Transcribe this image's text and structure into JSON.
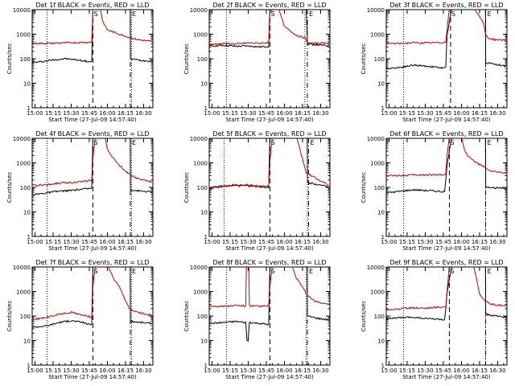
{
  "figure": {
    "colors": {
      "events": "#000000",
      "lld": "#cc0000",
      "axis": "#000000",
      "background": "#ffffff"
    },
    "time_ticks": [
      "15:00",
      "15:15",
      "15:30",
      "15:45",
      "16:00",
      "16:15",
      "16:30"
    ],
    "ylabel": "Counts/sec",
    "xlabel": "Start Time (27-Jul-09 14:57:40)",
    "y_tick_labels": [
      "1",
      "10",
      "100",
      "1000",
      "10000"
    ],
    "marker_labels": {
      "start": "S",
      "end": "E"
    }
  },
  "chart_data": [
    {
      "type": "line",
      "title": "Det 1f BLACK = Events, RED = LLD",
      "xlabel": "Start Time (27-Jul-09 14:57:40)",
      "ylabel": "Counts/sec",
      "x_unit": "minutes since 15:00",
      "xlim": [
        -2.3,
        97.7
      ],
      "ylim": [
        1,
        10000
      ],
      "yscale": "log",
      "markers": {
        "S": 48,
        "E": 79,
        "dotted": [
          10,
          80
        ]
      },
      "series": [
        {
          "name": "Events",
          "color": "#000000",
          "x": [
            -2,
            5,
            15,
            25,
            35,
            45,
            47,
            48,
            52,
            60,
            70,
            78.9,
            79.1,
            88,
            97
          ],
          "y": [
            70,
            75,
            90,
            100,
            90,
            75,
            75,
            12000,
            12000,
            12000,
            12000,
            12000,
            100,
            85,
            80
          ]
        },
        {
          "name": "LLD",
          "color": "#cc0000",
          "x": [
            -2,
            15,
            30,
            45,
            47,
            48,
            52,
            54,
            56,
            60,
            70,
            78,
            85,
            97
          ],
          "y": [
            420,
            430,
            450,
            470,
            480,
            10000,
            12000,
            12000,
            3500,
            1500,
            1000,
            750,
            600,
            500
          ]
        }
      ]
    },
    {
      "type": "line",
      "title": "Det 2f BLACK = Events, RED = LLD",
      "xlabel": "Start Time (27-Jul-09 14:57:40)",
      "ylabel": "Counts/sec",
      "x_unit": "minutes since 15:00",
      "xlim": [
        -2.3,
        97.7
      ],
      "ylim": [
        1,
        10000
      ],
      "yscale": "log",
      "markers": {
        "S": 48,
        "E": 79,
        "dotted": [
          12,
          77
        ]
      },
      "series": [
        {
          "name": "Events",
          "color": "#000000",
          "x": [
            -2,
            10,
            20,
            30,
            40,
            47,
            48,
            52,
            60,
            70,
            77,
            78,
            79.1,
            85,
            97
          ],
          "y": [
            330,
            350,
            320,
            330,
            300,
            320,
            12000,
            12000,
            12000,
            12000,
            12000,
            12000,
            400,
            380,
            330
          ]
        },
        {
          "name": "LLD",
          "color": "#cc0000",
          "x": [
            -2,
            10,
            20,
            30,
            40,
            47,
            48,
            52,
            55,
            60,
            70,
            77,
            78,
            79,
            85,
            97
          ],
          "y": [
            380,
            420,
            400,
            440,
            430,
            460,
            8000,
            12000,
            12000,
            2000,
            900,
            700,
            600,
            450,
            420,
            450
          ]
        }
      ]
    },
    {
      "type": "line",
      "title": "Det 3f BLACK = Events, RED = LLD",
      "xlabel": "Start Time (27-Jul-09 14:57:40)",
      "ylabel": "Counts/sec",
      "x_unit": "minutes since 15:00",
      "xlim": [
        -2.3,
        97.7
      ],
      "ylim": [
        1,
        10000
      ],
      "yscale": "log",
      "markers": {
        "S": 51,
        "E": 80,
        "dotted": [
          12,
          80
        ]
      },
      "series": [
        {
          "name": "Events",
          "color": "#000000",
          "x": [
            -2,
            10,
            20,
            30,
            40,
            46,
            47,
            47.5,
            48,
            52,
            60,
            70,
            78,
            79.9,
            80.1,
            88,
            97
          ],
          "y": [
            40,
            45,
            55,
            50,
            45,
            40,
            45,
            200,
            900,
            12000,
            12000,
            12000,
            12000,
            12000,
            70,
            60,
            50
          ]
        },
        {
          "name": "LLD",
          "color": "#cc0000",
          "x": [
            -2,
            10,
            20,
            30,
            40,
            47,
            48,
            50,
            53,
            60,
            70,
            78,
            80,
            82,
            88,
            97
          ],
          "y": [
            420,
            420,
            450,
            440,
            450,
            470,
            1500,
            12000,
            12000,
            12000,
            12000,
            3000,
            1000,
            700,
            600,
            580
          ]
        }
      ]
    },
    {
      "type": "line",
      "title": "Det 4f BLACK = Events, RED = LLD",
      "xlabel": "Start Time (27-Jul-09 14:57:40)",
      "ylabel": "Counts/sec",
      "x_unit": "minutes since 15:00",
      "xlim": [
        -2.3,
        97.7
      ],
      "ylim": [
        1,
        10000
      ],
      "yscale": "log",
      "markers": {
        "S": 48,
        "E": 79,
        "dotted": [
          10,
          80
        ]
      },
      "series": [
        {
          "name": "Events",
          "color": "#000000",
          "x": [
            -2,
            10,
            20,
            30,
            40,
            45,
            47,
            48,
            52,
            60,
            70,
            78.9,
            79.1,
            88,
            97
          ],
          "y": [
            50,
            60,
            70,
            75,
            85,
            90,
            95,
            12000,
            12000,
            12000,
            12000,
            12000,
            80,
            70,
            65
          ]
        },
        {
          "name": "LLD",
          "color": "#cc0000",
          "x": [
            -2,
            10,
            20,
            30,
            40,
            47,
            48,
            50,
            52,
            54,
            56,
            58,
            60,
            65,
            70,
            78,
            85,
            97
          ],
          "y": [
            120,
            130,
            150,
            160,
            170,
            200,
            1500,
            12000,
            12000,
            12000,
            12000,
            12000,
            3500,
            1500,
            800,
            350,
            230,
            160
          ]
        }
      ]
    },
    {
      "type": "line",
      "title": "Det 5f BLACK = Events, RED = LLD",
      "xlabel": "Start Time (27-Jul-09 14:57:40)",
      "ylabel": "Counts/sec",
      "x_unit": "minutes since 15:00",
      "xlim": [
        -2.3,
        97.7
      ],
      "ylim": [
        1,
        10000
      ],
      "yscale": "log",
      "markers": {
        "S": 48,
        "E": 80,
        "dotted": [
          10,
          79
        ]
      },
      "series": [
        {
          "name": "Events",
          "color": "#000000",
          "x": [
            -2,
            10,
            20,
            30,
            40,
            47,
            48,
            52,
            60,
            70,
            78.9,
            79.1,
            88,
            97
          ],
          "y": [
            90,
            110,
            120,
            115,
            105,
            100,
            12000,
            12000,
            12000,
            12000,
            12000,
            160,
            130,
            100
          ]
        },
        {
          "name": "LLD",
          "color": "#cc0000",
          "x": [
            -2,
            10,
            20,
            30,
            40,
            47,
            48,
            50,
            54,
            60,
            70,
            78,
            85,
            97
          ],
          "y": [
            100,
            120,
            130,
            125,
            115,
            110,
            1000,
            12000,
            12000,
            12000,
            12000,
            400,
            250,
            120
          ]
        }
      ]
    },
    {
      "type": "line",
      "title": "Det 6f BLACK = Events, RED = LLD",
      "xlabel": "Start Time (27-Jul-09 14:57:40)",
      "ylabel": "Counts/sec",
      "x_unit": "minutes since 15:00",
      "xlim": [
        -2.3,
        97.7
      ],
      "ylim": [
        1,
        10000
      ],
      "yscale": "log",
      "markers": {
        "S": 50,
        "E": 80,
        "dotted": [
          12,
          80
        ]
      },
      "series": [
        {
          "name": "Events",
          "color": "#000000",
          "x": [
            -2,
            10,
            20,
            30,
            40,
            46,
            47,
            48,
            52,
            60,
            70,
            78,
            79.9,
            80.1,
            88,
            97
          ],
          "y": [
            60,
            70,
            80,
            75,
            70,
            65,
            200,
            800,
            12000,
            12000,
            12000,
            12000,
            12000,
            110,
            95,
            90
          ]
        },
        {
          "name": "LLD",
          "color": "#cc0000",
          "x": [
            -2,
            10,
            20,
            30,
            40,
            47,
            48,
            50,
            53,
            58,
            60,
            62,
            65,
            70,
            78,
            85,
            97
          ],
          "y": [
            300,
            310,
            320,
            320,
            330,
            330,
            2000,
            12000,
            12000,
            12000,
            12000,
            4000,
            2000,
            1200,
            700,
            450,
            380
          ]
        }
      ]
    },
    {
      "type": "line",
      "title": "Det 7f BLACK = Events, RED = LLD",
      "xlabel": "Start Time (27-Jul-09 14:57:40)",
      "ylabel": "Counts/sec",
      "x_unit": "minutes since 15:00",
      "xlim": [
        -2.3,
        97.7
      ],
      "ylim": [
        1,
        10000
      ],
      "yscale": "log",
      "markers": {
        "S": 48,
        "E": 79,
        "dotted": [
          10,
          80
        ]
      },
      "series": [
        {
          "name": "Events",
          "color": "#000000",
          "x": [
            -2,
            10,
            20,
            30,
            40,
            45,
            47,
            48,
            52,
            60,
            70,
            78.9,
            79.1,
            88,
            97
          ],
          "y": [
            35,
            40,
            55,
            65,
            55,
            45,
            45,
            12000,
            12000,
            12000,
            12000,
            12000,
            60,
            55,
            50
          ]
        },
        {
          "name": "LLD",
          "color": "#cc0000",
          "x": [
            -2,
            10,
            20,
            30,
            40,
            47,
            48,
            50,
            54,
            60,
            65,
            70,
            78,
            85,
            97
          ],
          "y": [
            70,
            90,
            120,
            140,
            110,
            90,
            1500,
            12000,
            12000,
            12000,
            3500,
            1500,
            200,
            140,
            110
          ]
        }
      ]
    },
    {
      "type": "line",
      "title": "Det 8f BLACK = Events, RED = LLD",
      "xlabel": "Start Time (27-Jul-09 14:57:40)",
      "ylabel": "Counts/sec",
      "x_unit": "minutes since 15:00",
      "xlim": [
        -2.3,
        97.7
      ],
      "ylim": [
        1,
        10000
      ],
      "yscale": "log",
      "markers": {
        "S": 48,
        "E": 79,
        "dotted": [
          12,
          78
        ]
      },
      "series": [
        {
          "name": "Events",
          "color": "#000000",
          "x": [
            -2,
            10,
            20,
            28,
            29,
            30,
            31,
            40,
            47,
            48,
            52,
            60,
            70,
            78.9,
            79.1,
            88,
            97
          ],
          "y": [
            50,
            55,
            60,
            55,
            10,
            10,
            55,
            50,
            45,
            12000,
            12000,
            12000,
            12000,
            12000,
            100,
            80,
            70
          ]
        },
        {
          "name": "LLD",
          "color": "#cc0000",
          "x": [
            -2,
            10,
            20,
            28,
            28.5,
            30.5,
            31,
            40,
            47,
            48,
            50,
            54,
            60,
            66,
            70,
            75,
            78,
            85,
            97
          ],
          "y": [
            260,
            250,
            270,
            260,
            12000,
            12000,
            260,
            250,
            260,
            1500,
            12000,
            12000,
            12000,
            12000,
            3500,
            1500,
            800,
            400,
            300
          ]
        }
      ]
    },
    {
      "type": "line",
      "title": "Det 9f BLACK = Events, RED = LLD",
      "xlabel": "Start Time (27-Jul-09 14:57:40)",
      "ylabel": "Counts/sec",
      "x_unit": "minutes since 15:00",
      "xlim": [
        -2.3,
        97.7
      ],
      "ylim": [
        1,
        10000
      ],
      "yscale": "log",
      "markers": {
        "S": 50,
        "E": 80,
        "dotted": [
          12,
          80
        ]
      },
      "series": [
        {
          "name": "Events",
          "color": "#000000",
          "x": [
            -2,
            10,
            20,
            30,
            40,
            46,
            47,
            48,
            52,
            60,
            70,
            78,
            79.9,
            80.1,
            88,
            97
          ],
          "y": [
            80,
            85,
            90,
            80,
            75,
            70,
            200,
            800,
            12000,
            12000,
            12000,
            12000,
            12000,
            120,
            100,
            90
          ]
        },
        {
          "name": "LLD",
          "color": "#cc0000",
          "x": [
            -2,
            10,
            20,
            30,
            40,
            47,
            48,
            50,
            53,
            60,
            70,
            75,
            80,
            85,
            97
          ],
          "y": [
            180,
            200,
            220,
            210,
            230,
            240,
            1000,
            12000,
            12000,
            12000,
            12000,
            800,
            400,
            300,
            250
          ]
        }
      ]
    }
  ]
}
